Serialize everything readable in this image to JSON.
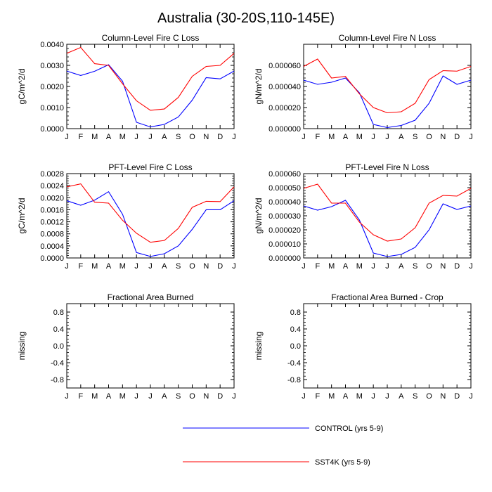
{
  "figure": {
    "title": "Australia (30-20S,110-145E)"
  },
  "legend": {
    "entries": [
      {
        "label": "CONTROL (yrs 5-9)",
        "color": "#0000ff"
      },
      {
        "label": "SST4K (yrs 5-9)",
        "color": "#ff0000"
      }
    ]
  },
  "chart_data": [
    {
      "type": "line",
      "title": "Column-Level Fire C Loss",
      "ylabel": "gC/m^2/d",
      "categories": [
        "J",
        "F",
        "M",
        "A",
        "M",
        "J",
        "J",
        "A",
        "S",
        "O",
        "N",
        "D",
        "J"
      ],
      "ylim": [
        0,
        0.004
      ],
      "yticks": [
        0,
        0.001,
        0.002,
        0.003,
        0.004
      ],
      "ytick_labels": [
        "0.0000",
        "0.0010",
        "0.0020",
        "0.0030",
        "0.0040"
      ],
      "series": [
        {
          "name": "CONTROL (yrs 5-9)",
          "color": "#0000ff",
          "values": [
            0.00273,
            0.00252,
            0.00272,
            0.00303,
            0.00225,
            0.0003,
            8e-05,
            0.0002,
            0.00055,
            0.00135,
            0.00242,
            0.00236,
            0.00273
          ]
        },
        {
          "name": "SST4K (yrs 5-9)",
          "color": "#ff0000",
          "values": [
            0.00357,
            0.00385,
            0.00308,
            0.003,
            0.00213,
            0.00132,
            0.00087,
            0.00093,
            0.00148,
            0.00248,
            0.00295,
            0.003,
            0.00357
          ]
        }
      ]
    },
    {
      "type": "line",
      "title": "Column-Level Fire N Loss",
      "ylabel": "gN/m^2/d",
      "categories": [
        "J",
        "F",
        "M",
        "A",
        "M",
        "J",
        "J",
        "A",
        "S",
        "O",
        "N",
        "D",
        "J"
      ],
      "ylim": [
        0,
        8e-05
      ],
      "yticks": [
        0,
        2e-05,
        4e-05,
        6e-05
      ],
      "ytick_labels": [
        "0.000000",
        "0.000020",
        "0.000040",
        "0.000060"
      ],
      "series": [
        {
          "name": "CONTROL (yrs 5-9)",
          "color": "#0000ff",
          "values": [
            4.6e-05,
            4.2e-05,
            4.4e-05,
            4.8e-05,
            3.4e-05,
            4e-06,
            1e-06,
            3e-06,
            8e-06,
            2.4e-05,
            5e-05,
            4.2e-05,
            4.6e-05
          ]
        },
        {
          "name": "SST4K (yrs 5-9)",
          "color": "#ff0000",
          "values": [
            5.9e-05,
            6.6e-05,
            4.8e-05,
            4.95e-05,
            3.3e-05,
            2e-05,
            1.5e-05,
            1.6e-05,
            2.4e-05,
            4.65e-05,
            5.5e-05,
            5.45e-05,
            5.9e-05
          ]
        }
      ]
    },
    {
      "type": "line",
      "title": "PFT-Level Fire C Loss",
      "ylabel": "gC/m^2/d",
      "categories": [
        "J",
        "F",
        "M",
        "A",
        "M",
        "J",
        "J",
        "A",
        "S",
        "O",
        "N",
        "D",
        "J"
      ],
      "ylim": [
        0,
        0.0028
      ],
      "yticks": [
        0,
        0.0004,
        0.0008,
        0.0012,
        0.0016,
        0.002,
        0.0024,
        0.0028
      ],
      "ytick_labels": [
        "0.0000",
        "0.0004",
        "0.0008",
        "0.0012",
        "0.0016",
        "0.0020",
        "0.0024",
        "0.0028"
      ],
      "series": [
        {
          "name": "CONTROL (yrs 5-9)",
          "color": "#0000ff",
          "values": [
            0.0019,
            0.00175,
            0.00192,
            0.0022,
            0.00145,
            0.00018,
            5e-05,
            0.00014,
            0.0004,
            0.00095,
            0.0016,
            0.0016,
            0.0019
          ]
        },
        {
          "name": "SST4K (yrs 5-9)",
          "color": "#ff0000",
          "values": [
            0.00236,
            0.00246,
            0.00185,
            0.00182,
            0.00125,
            0.00082,
            0.00052,
            0.00058,
            0.00098,
            0.00168,
            0.00188,
            0.00187,
            0.00236
          ]
        }
      ]
    },
    {
      "type": "line",
      "title": "PFT-Level Fire N Loss",
      "ylabel": "gN/m^2/d",
      "categories": [
        "J",
        "F",
        "M",
        "A",
        "M",
        "J",
        "J",
        "A",
        "S",
        "O",
        "N",
        "D",
        "J"
      ],
      "ylim": [
        0,
        6e-05
      ],
      "yticks": [
        0,
        1e-05,
        2e-05,
        3e-05,
        4e-05,
        5e-05,
        6e-05
      ],
      "ytick_labels": [
        "0.000000",
        "0.000010",
        "0.000020",
        "0.000030",
        "0.000040",
        "0.000050",
        "0.000060"
      ],
      "series": [
        {
          "name": "CONTROL (yrs 5-9)",
          "color": "#0000ff",
          "values": [
            3.7e-05,
            3.4e-05,
            3.65e-05,
            4.1e-05,
            2.7e-05,
            3.5e-06,
            1e-06,
            2.5e-06,
            7.5e-06,
            2e-05,
            3.85e-05,
            3.45e-05,
            3.7e-05
          ]
        },
        {
          "name": "SST4K (yrs 5-9)",
          "color": "#ff0000",
          "values": [
            4.95e-05,
            5.25e-05,
            3.9e-05,
            3.9e-05,
            2.55e-05,
            1.65e-05,
            1.2e-05,
            1.35e-05,
            2.15e-05,
            3.9e-05,
            4.45e-05,
            4.4e-05,
            4.95e-05
          ]
        }
      ]
    },
    {
      "type": "line",
      "title": "Fractional Area Burned",
      "ylabel": "missing",
      "categories": [
        "J",
        "F",
        "M",
        "A",
        "M",
        "J",
        "J",
        "A",
        "S",
        "O",
        "N",
        "D",
        "J"
      ],
      "ylim": [
        -1,
        1
      ],
      "yticks": [
        -0.8,
        -0.4,
        0,
        0.4,
        0.8
      ],
      "ytick_labels": [
        "-0.8",
        "-0.4",
        "0.0",
        "0.4",
        "0.8"
      ],
      "series": []
    },
    {
      "type": "line",
      "title": "Fractional Area Burned - Crop",
      "ylabel": "missing",
      "categories": [
        "J",
        "F",
        "M",
        "A",
        "M",
        "J",
        "J",
        "A",
        "S",
        "O",
        "N",
        "D",
        "J"
      ],
      "ylim": [
        -1,
        1
      ],
      "yticks": [
        -0.8,
        -0.4,
        0,
        0.4,
        0.8
      ],
      "ytick_labels": [
        "-0.8",
        "-0.4",
        "0.0",
        "0.4",
        "0.8"
      ],
      "series": []
    }
  ]
}
